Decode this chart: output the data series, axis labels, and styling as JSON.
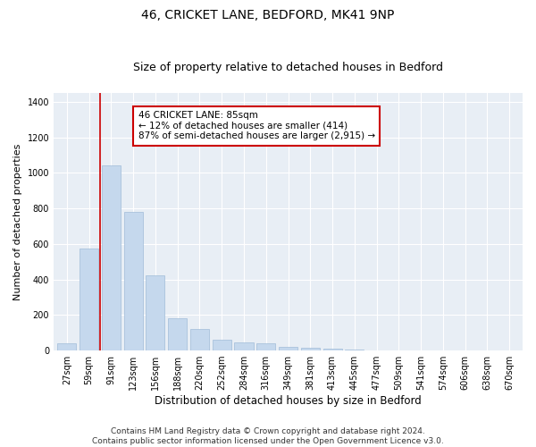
{
  "title1": "46, CRICKET LANE, BEDFORD, MK41 9NP",
  "title2": "Size of property relative to detached houses in Bedford",
  "xlabel": "Distribution of detached houses by size in Bedford",
  "ylabel": "Number of detached properties",
  "categories": [
    "27sqm",
    "59sqm",
    "91sqm",
    "123sqm",
    "156sqm",
    "188sqm",
    "220sqm",
    "252sqm",
    "284sqm",
    "316sqm",
    "349sqm",
    "381sqm",
    "413sqm",
    "445sqm",
    "477sqm",
    "509sqm",
    "541sqm",
    "574sqm",
    "606sqm",
    "638sqm",
    "670sqm"
  ],
  "values": [
    40,
    575,
    1040,
    780,
    425,
    182,
    120,
    62,
    45,
    42,
    22,
    18,
    12,
    7,
    0,
    0,
    0,
    0,
    0,
    0,
    0
  ],
  "bar_color": "#c5d8ed",
  "bar_edge_color": "#a0bcd8",
  "annotation_text": "46 CRICKET LANE: 85sqm\n← 12% of detached houses are smaller (414)\n87% of semi-detached houses are larger (2,915) →",
  "annotation_box_color": "#ffffff",
  "annotation_box_edge_color": "#cc0000",
  "vline_color": "#cc0000",
  "ylim": [
    0,
    1450
  ],
  "yticks": [
    0,
    200,
    400,
    600,
    800,
    1000,
    1200,
    1400
  ],
  "footer_text": "Contains HM Land Registry data © Crown copyright and database right 2024.\nContains public sector information licensed under the Open Government Licence v3.0.",
  "bg_color": "#ffffff",
  "plot_bg_color": "#e8eef5",
  "title1_fontsize": 10,
  "title2_fontsize": 9,
  "xlabel_fontsize": 8.5,
  "ylabel_fontsize": 8,
  "tick_fontsize": 7,
  "footer_fontsize": 6.5
}
